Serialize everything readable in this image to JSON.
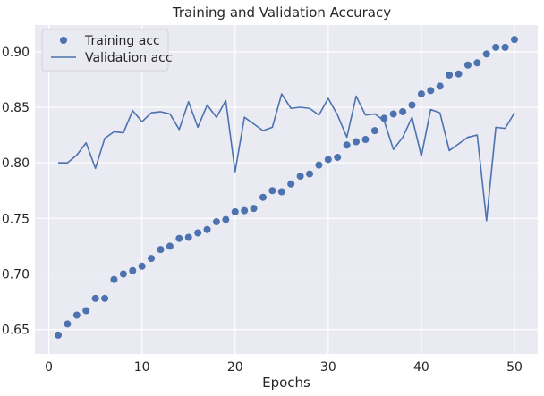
{
  "chart_data": {
    "type": "line",
    "title": "Training and Validation Accuracy",
    "xlabel": "Epochs",
    "ylabel": "",
    "xlim": [
      -1.5,
      52.5
    ],
    "ylim": [
      0.628,
      0.924
    ],
    "x_ticks": [
      0,
      10,
      20,
      30,
      40,
      50
    ],
    "y_ticks": [
      0.65,
      0.7,
      0.75,
      0.8,
      0.85,
      0.9
    ],
    "x_tick_labels": [
      "0",
      "10",
      "20",
      "30",
      "40",
      "50"
    ],
    "y_tick_labels": [
      "0.65",
      "0.70",
      "0.75",
      "0.80",
      "0.85",
      "0.90"
    ],
    "grid": true,
    "background_color": "#eaeaf2",
    "legend_position": "top-left",
    "x": [
      1,
      2,
      3,
      4,
      5,
      6,
      7,
      8,
      9,
      10,
      11,
      12,
      13,
      14,
      15,
      16,
      17,
      18,
      19,
      20,
      21,
      22,
      23,
      24,
      25,
      26,
      27,
      28,
      29,
      30,
      31,
      32,
      33,
      34,
      35,
      36,
      37,
      38,
      39,
      40,
      41,
      42,
      43,
      44,
      45,
      46,
      47,
      48,
      49,
      50
    ],
    "series": [
      {
        "name": "Training acc",
        "style": "markers",
        "color": "#4c72b0",
        "values": [
          0.645,
          0.655,
          0.663,
          0.667,
          0.678,
          0.678,
          0.695,
          0.7,
          0.703,
          0.707,
          0.714,
          0.722,
          0.725,
          0.732,
          0.733,
          0.737,
          0.74,
          0.747,
          0.749,
          0.756,
          0.757,
          0.759,
          0.769,
          0.775,
          0.774,
          0.781,
          0.788,
          0.79,
          0.798,
          0.803,
          0.805,
          0.816,
          0.819,
          0.821,
          0.829,
          0.84,
          0.844,
          0.846,
          0.852,
          0.862,
          0.865,
          0.869,
          0.879,
          0.88,
          0.888,
          0.89,
          0.898,
          0.904,
          0.904,
          0.911
        ]
      },
      {
        "name": "Validation acc",
        "style": "line",
        "color": "#4c72b0",
        "values": [
          0.8,
          0.8,
          0.807,
          0.818,
          0.795,
          0.822,
          0.828,
          0.827,
          0.847,
          0.837,
          0.845,
          0.846,
          0.844,
          0.83,
          0.855,
          0.832,
          0.852,
          0.841,
          0.856,
          0.792,
          0.841,
          0.835,
          0.829,
          0.832,
          0.862,
          0.849,
          0.85,
          0.849,
          0.843,
          0.858,
          0.843,
          0.823,
          0.86,
          0.843,
          0.844,
          0.838,
          0.812,
          0.823,
          0.841,
          0.806,
          0.848,
          0.845,
          0.811,
          0.817,
          0.823,
          0.825,
          0.748,
          0.832,
          0.831,
          0.845
        ]
      }
    ]
  }
}
